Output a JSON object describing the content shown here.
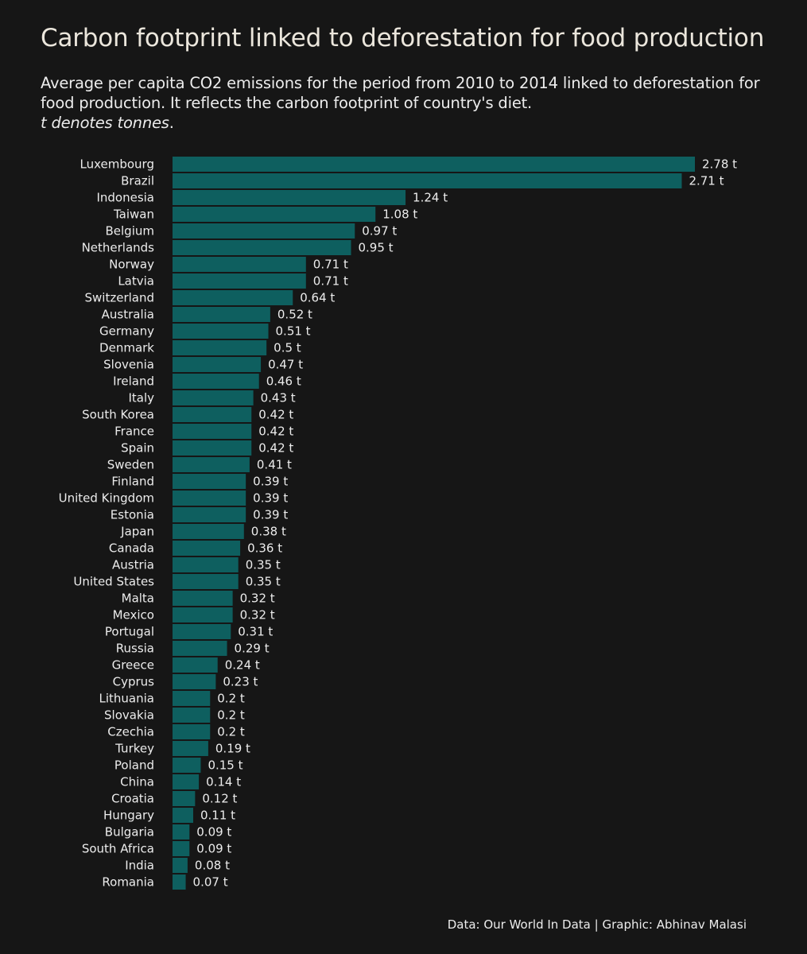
{
  "title": "Carbon footprint linked to deforestation for food production",
  "subtitle": "Average per capita CO2 emissions for the period from 2010 to 2014 linked to deforestation for food production. It reflects the carbon footprint of country's diet.",
  "note": "t denotes tonnes",
  "note_period": ".",
  "caption": "Data: Our World In Data | Graphic: Abhinav Malasi",
  "colors": {
    "background": "#161616",
    "bar": "#0e5f5f",
    "text": "#ececec"
  },
  "chart_data": {
    "type": "bar",
    "orientation": "horizontal",
    "unit_suffix": " t",
    "grid": false,
    "legend": "none",
    "xlim": [
      0,
      2.78
    ],
    "categories": [
      "Luxembourg",
      "Brazil",
      "Indonesia",
      "Taiwan",
      "Belgium",
      "Netherlands",
      "Norway",
      "Latvia",
      "Switzerland",
      "Australia",
      "Germany",
      "Denmark",
      "Slovenia",
      "Ireland",
      "Italy",
      "South Korea",
      "France",
      "Spain",
      "Sweden",
      "Finland",
      "United Kingdom",
      "Estonia",
      "Japan",
      "Canada",
      "Austria",
      "United States",
      "Malta",
      "Mexico",
      "Portugal",
      "Russia",
      "Greece",
      "Cyprus",
      "Lithuania",
      "Slovakia",
      "Czechia",
      "Turkey",
      "Poland",
      "China",
      "Croatia",
      "Hungary",
      "Bulgaria",
      "South Africa",
      "India",
      "Romania"
    ],
    "values": [
      2.78,
      2.71,
      1.24,
      1.08,
      0.97,
      0.95,
      0.71,
      0.71,
      0.64,
      0.52,
      0.51,
      0.5,
      0.47,
      0.46,
      0.43,
      0.42,
      0.42,
      0.42,
      0.41,
      0.39,
      0.39,
      0.39,
      0.38,
      0.36,
      0.35,
      0.35,
      0.32,
      0.32,
      0.31,
      0.29,
      0.24,
      0.23,
      0.2,
      0.2,
      0.2,
      0.19,
      0.15,
      0.14,
      0.12,
      0.11,
      0.09,
      0.09,
      0.08,
      0.07
    ]
  }
}
